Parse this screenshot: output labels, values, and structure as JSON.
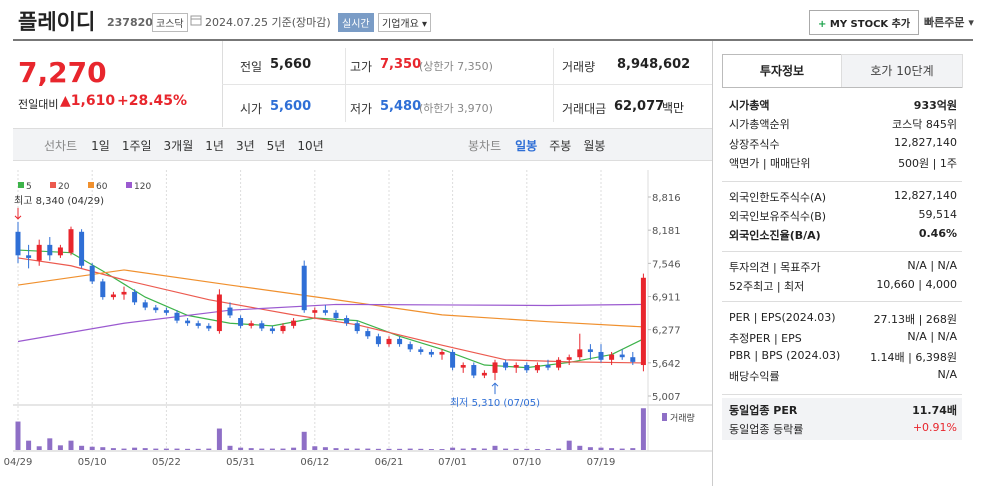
{
  "header": {
    "name": "플레이디",
    "code": "237820",
    "market": "코스닥",
    "date": "2024.07.25 기준(장마감)",
    "realtime": "실시간",
    "company_info": "기업개요",
    "my_stock": "MY STOCK 추가",
    "quick_order": "빠른주문"
  },
  "quote": {
    "price": "7,270",
    "change_label": "전일대비",
    "change": "1,610",
    "change_rate": "+28.45%",
    "fields": [
      {
        "label": "전일",
        "value": "5,660"
      },
      {
        "label": "고가",
        "value": "7,350",
        "note": "(상한가 7,350)"
      },
      {
        "label": "거래량",
        "value": "8,948,602"
      },
      {
        "label": "시가",
        "value": "5,600"
      },
      {
        "label": "저가",
        "value": "5,480",
        "note": "(하한가 3,970)"
      },
      {
        "label": "거래대금",
        "value": "62,077",
        "unit": "백만"
      }
    ]
  },
  "period_tabs": {
    "line_label": "선차트",
    "line": [
      "1일",
      "1주일",
      "3개월",
      "1년",
      "3년",
      "5년",
      "10년"
    ],
    "candle_label": "봉차트",
    "candle": [
      "일봉",
      "주봉",
      "월봉"
    ]
  },
  "chart_data": {
    "type": "candlestick",
    "categories": [
      "04/29",
      null,
      null,
      null,
      null,
      null,
      null,
      "05/10",
      null,
      null,
      null,
      null,
      null,
      null,
      "05/22",
      null,
      null,
      null,
      null,
      null,
      null,
      "05/31",
      null,
      null,
      null,
      null,
      null,
      null,
      "06/12",
      null,
      null,
      null,
      null,
      null,
      null,
      "06/21",
      null,
      null,
      null,
      null,
      null,
      "07/01",
      null,
      null,
      null,
      null,
      null,
      null,
      "07/10",
      null,
      null,
      null,
      null,
      null,
      null,
      "07/19",
      null,
      null,
      null,
      null
    ],
    "open": [
      8150,
      7700,
      7600,
      7900,
      7700,
      7750,
      8150,
      7500,
      7200,
      6900,
      6950,
      7000,
      6800,
      6700,
      6650,
      6600,
      6450,
      6400,
      6350,
      6250,
      6700,
      6500,
      6350,
      6400,
      6300,
      6250,
      6350,
      7500,
      6600,
      6650,
      6600,
      6500,
      6400,
      6250,
      6150,
      6000,
      6100,
      6000,
      5900,
      5850,
      5800,
      5850,
      5550,
      5600,
      5400,
      5450,
      5650,
      5550,
      5600,
      5500,
      5600,
      5550,
      5700,
      5750,
      5900,
      5850,
      5700,
      5800,
      5750,
      5600
    ],
    "high": [
      8340,
      7900,
      8000,
      8050,
      7900,
      8250,
      8200,
      7550,
      7250,
      7000,
      7100,
      7050,
      6850,
      6750,
      6700,
      6650,
      6500,
      6450,
      6400,
      7050,
      6800,
      6550,
      6450,
      6450,
      6350,
      6400,
      6500,
      7600,
      6700,
      6750,
      6650,
      6550,
      6450,
      6300,
      6200,
      6150,
      6150,
      6050,
      5950,
      5900,
      5900,
      5900,
      5650,
      5650,
      5500,
      5700,
      5700,
      5650,
      5650,
      5650,
      5700,
      5750,
      5800,
      6200,
      6000,
      6000,
      5850,
      5900,
      5850,
      7350
    ],
    "low": [
      7550,
      7450,
      7500,
      7600,
      7650,
      7700,
      7450,
      7150,
      6850,
      6850,
      6850,
      6750,
      6650,
      6600,
      6550,
      6400,
      6350,
      6300,
      6250,
      6200,
      6500,
      6300,
      6300,
      6250,
      6200,
      6200,
      6300,
      6600,
      6500,
      6550,
      6450,
      6350,
      6200,
      6100,
      5950,
      5950,
      5950,
      5850,
      5800,
      5750,
      5700,
      5500,
      5450,
      5350,
      5350,
      5310,
      5500,
      5450,
      5450,
      5450,
      5500,
      5500,
      5600,
      5700,
      5700,
      5650,
      5600,
      5700,
      5600,
      5480
    ],
    "close": [
      7700,
      7650,
      7900,
      7700,
      7850,
      8200,
      7500,
      7200,
      6900,
      6950,
      7000,
      6800,
      6700,
      6650,
      6600,
      6450,
      6400,
      6350,
      6300,
      6950,
      6550,
      6350,
      6400,
      6300,
      6250,
      6350,
      6450,
      6650,
      6650,
      6600,
      6500,
      6400,
      6250,
      6150,
      6000,
      6100,
      6000,
      5900,
      5850,
      5800,
      5850,
      5550,
      5600,
      5400,
      5450,
      5650,
      5550,
      5600,
      5500,
      5600,
      5550,
      5700,
      5750,
      5900,
      5850,
      5700,
      5800,
      5750,
      5660,
      7270
    ],
    "up_color": "#e8262d",
    "down_color": "#2f6fd6",
    "ylim": [
      4835,
      9084
    ],
    "yticks": [
      {
        "value": 8816,
        "label": "8,816"
      },
      {
        "value": 8181,
        "label": "8,181"
      },
      {
        "value": 7546,
        "label": "7,546"
      },
      {
        "value": 6911,
        "label": "6,911"
      },
      {
        "value": 6277,
        "label": "6,277"
      },
      {
        "value": 5642,
        "label": "5,642"
      },
      {
        "value": 5007,
        "label": "5,007"
      }
    ],
    "moving_averages": [
      {
        "name": "5",
        "color": "#3db34a",
        "x": [
          0,
          5,
          8,
          12,
          16,
          20,
          24,
          28,
          32,
          36,
          40,
          44,
          48,
          52,
          56,
          59
        ],
        "values": [
          7800,
          7750,
          7400,
          6900,
          6550,
          6400,
          6350,
          6500,
          6450,
          6150,
          5900,
          5600,
          5550,
          5650,
          5800,
          6100
        ]
      },
      {
        "name": "20",
        "color": "#ec5a4f",
        "x": [
          0,
          5,
          10,
          18,
          26,
          32,
          40,
          46,
          52,
          59
        ],
        "values": [
          7650,
          7500,
          7230,
          6850,
          6560,
          6370,
          5980,
          5700,
          5660,
          5640
        ]
      },
      {
        "name": "60",
        "color": "#f0902e",
        "x": [
          0,
          10,
          20,
          30,
          40,
          50,
          59
        ],
        "values": [
          7130,
          7420,
          7130,
          6850,
          6560,
          6430,
          6330
        ]
      },
      {
        "name": "120",
        "color": "#9b5ad0",
        "x": [
          0,
          10,
          20,
          30,
          40,
          50,
          59
        ],
        "values": [
          6050,
          6400,
          6650,
          6760,
          6750,
          6740,
          6760
        ]
      }
    ],
    "volume": {
      "label": "거래량",
      "color": "#8e6fc6",
      "ylim": [
        0,
        9000000
      ],
      "values": [
        6100000,
        2000000,
        800000,
        2500000,
        1000000,
        2000000,
        900000,
        700000,
        600000,
        400000,
        300000,
        500000,
        400000,
        300000,
        300000,
        300000,
        250000,
        250000,
        300000,
        4600000,
        900000,
        500000,
        400000,
        300000,
        300000,
        300000,
        500000,
        3900000,
        800000,
        600000,
        400000,
        300000,
        300000,
        300000,
        250000,
        250000,
        250000,
        300000,
        250000,
        200000,
        200000,
        500000,
        300000,
        400000,
        300000,
        900000,
        300000,
        250000,
        250000,
        200000,
        200000,
        300000,
        2000000,
        900000,
        600000,
        500000,
        400000,
        300000,
        400000,
        8948602
      ]
    },
    "annotations": [
      {
        "text": "최고 8,340 (04/29)",
        "x": 0,
        "value": 8340,
        "color": "#e8262d"
      },
      {
        "text": "최저 5,310 (07/05)",
        "x": 45,
        "value": 5310,
        "color": "#2f6fd6"
      }
    ]
  },
  "side_panel": {
    "tabs": [
      "투자정보",
      "호가 10단계"
    ],
    "sections": [
      [
        {
          "label": "시가총액",
          "value": "933억원"
        },
        {
          "label": "시가총액순위",
          "value": "코스닥 845위"
        },
        {
          "label": "상장주식수",
          "value": "12,827,140"
        },
        {
          "label": "액면가 | 매매단위",
          "value": "500원 | 1주"
        }
      ],
      [
        {
          "label": "외국인한도주식수(A)",
          "value": "12,827,140"
        },
        {
          "label": "외국인보유주식수(B)",
          "value": "59,514"
        },
        {
          "label": "외국인소진율(B/A)",
          "value": "0.46%"
        }
      ],
      [
        {
          "label": "투자의견 | 목표주가",
          "value": "N/A | N/A"
        },
        {
          "label": "52주최고 | 최저",
          "value": "10,660 | 4,000"
        }
      ],
      [
        {
          "label": "PER | EPS(2024.03)",
          "value": "27.13배 | 268원"
        },
        {
          "label": "추정PER | EPS",
          "value": "N/A | N/A"
        },
        {
          "label": "PBR | BPS (2024.03)",
          "value": "1.14배 | 6,398원"
        },
        {
          "label": "배당수익률",
          "value": "N/A"
        }
      ],
      [
        {
          "label": "동일업종 PER",
          "value": "11.74배"
        },
        {
          "label": "동일업종 등락률",
          "value": "+0.91%"
        }
      ]
    ]
  }
}
